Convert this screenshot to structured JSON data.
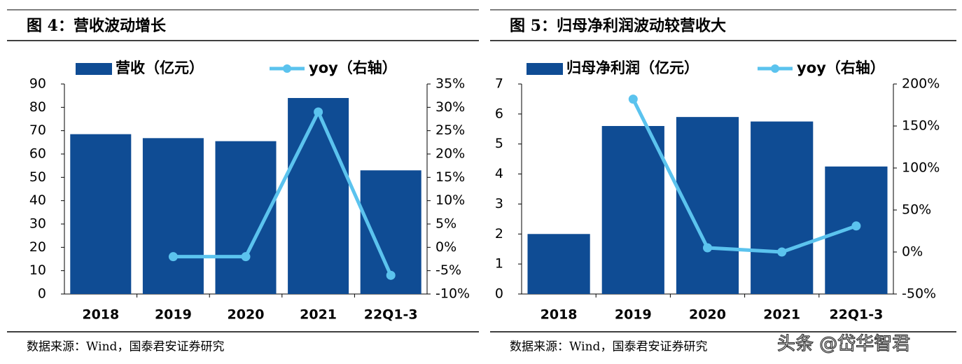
{
  "chart_data": [
    {
      "type": "bar",
      "title": "图 4：营收波动增长",
      "source": "数据来源：Wind，国泰君安证券研究",
      "categories": [
        "2018",
        "2019",
        "2020",
        "2021",
        "22Q1-3"
      ],
      "series": [
        {
          "name": "营收（亿元）",
          "color": "#0f4c94",
          "values": [
            68.5,
            66.8,
            65.5,
            84,
            53
          ]
        },
        {
          "name": "yoy（右轴）",
          "color": "#5bc3ee",
          "axis": "y2",
          "type": "line",
          "values": [
            null,
            -2,
            -2,
            29,
            -6
          ]
        }
      ],
      "ylim": [
        0,
        90
      ],
      "yticks": [
        0,
        10,
        20,
        30,
        40,
        50,
        60,
        70,
        80,
        90
      ],
      "y2lim": [
        -10,
        35
      ],
      "y2ticks": [
        {
          "value": -10,
          "label": "-10%"
        },
        {
          "value": -5,
          "label": "-5%"
        },
        {
          "value": 0,
          "label": "0%"
        },
        {
          "value": 5,
          "label": "5%"
        },
        {
          "value": 10,
          "label": "10%"
        },
        {
          "value": 15,
          "label": "15%"
        },
        {
          "value": 20,
          "label": "20%"
        },
        {
          "value": 25,
          "label": "25%"
        },
        {
          "value": 30,
          "label": "30%"
        },
        {
          "value": 35,
          "label": "35%"
        }
      ]
    },
    {
      "type": "bar",
      "title": "图 5：归母净利润波动较营收大",
      "source": "数据来源：Wind，国泰君安证券研究",
      "categories": [
        "2018",
        "2019",
        "2020",
        "2021",
        "22Q1-3"
      ],
      "series": [
        {
          "name": "归母净利润（亿元）",
          "color": "#0f4c94",
          "values": [
            2.0,
            5.6,
            5.9,
            5.75,
            4.25
          ]
        },
        {
          "name": "yoy（右轴）",
          "color": "#5bc3ee",
          "axis": "y2",
          "type": "line",
          "values": [
            null,
            182,
            5,
            0,
            31
          ]
        }
      ],
      "ylim": [
        0,
        7
      ],
      "yticks": [
        0,
        1,
        2,
        3,
        4,
        5,
        6,
        7
      ],
      "y2lim": [
        -50,
        200
      ],
      "y2ticks": [
        {
          "value": -50,
          "label": "-50%"
        },
        {
          "value": 0,
          "label": "0%"
        },
        {
          "value": 50,
          "label": "50%"
        },
        {
          "value": 100,
          "label": "100%"
        },
        {
          "value": 150,
          "label": "150%"
        },
        {
          "value": 200,
          "label": "200%"
        }
      ]
    }
  ],
  "watermark": "头条 @岱华智君"
}
